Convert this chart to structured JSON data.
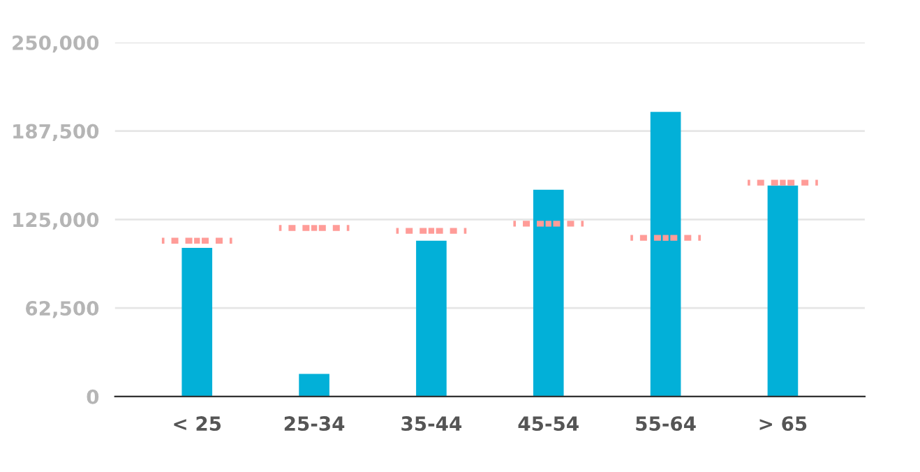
{
  "chart_data": {
    "type": "bar",
    "categories": [
      "< 25",
      "25-34",
      "35-44",
      "45-54",
      "55-64",
      "> 65"
    ],
    "series": [
      {
        "color": "#02b0d8",
        "values": [
          105000,
          16000,
          110000,
          146000,
          201000,
          149000
        ]
      },
      {
        "type": "scatter",
        "color": "#ff9c98",
        "line_style": "dotted",
        "values": [
          110000,
          119000,
          117000,
          122000,
          112000,
          151000
        ]
      }
    ],
    "ylim": [
      0,
      250000
    ],
    "yticks": [
      {
        "value": 0,
        "label": "0"
      },
      {
        "value": 62500,
        "label": "62,500"
      },
      {
        "value": 125000,
        "label": "125,000"
      },
      {
        "value": 187500,
        "label": "187,500"
      },
      {
        "value": 250000,
        "label": "250,000"
      }
    ],
    "grid": "y",
    "legend": false
  }
}
